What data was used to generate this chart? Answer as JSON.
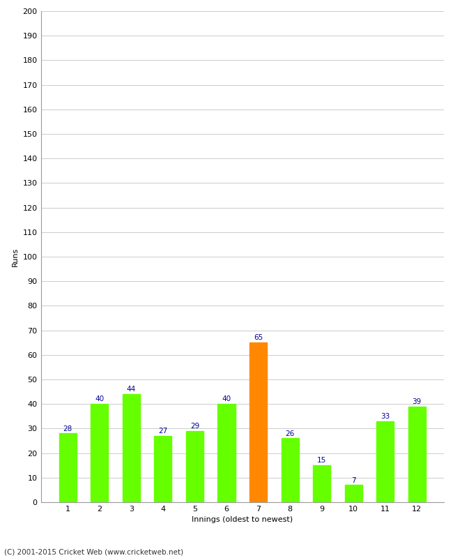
{
  "innings": [
    1,
    2,
    3,
    4,
    5,
    6,
    7,
    8,
    9,
    10,
    11,
    12
  ],
  "values": [
    28,
    40,
    44,
    27,
    29,
    40,
    65,
    26,
    15,
    7,
    33,
    39
  ],
  "bar_colors": [
    "#66ff00",
    "#66ff00",
    "#66ff00",
    "#66ff00",
    "#66ff00",
    "#66ff00",
    "#ff8800",
    "#66ff00",
    "#66ff00",
    "#66ff00",
    "#66ff00",
    "#66ff00"
  ],
  "xlabel": "Innings (oldest to newest)",
  "ylabel": "Runs",
  "ylim": [
    0,
    200
  ],
  "ytick_step": 10,
  "label_color": "#000099",
  "label_fontsize": 7.5,
  "axis_label_fontsize": 8,
  "tick_fontsize": 8,
  "footer": "(C) 2001-2015 Cricket Web (www.cricketweb.net)",
  "background_color": "#ffffff",
  "plot_bg_color": "#ffffff",
  "grid_color": "#cccccc",
  "bar_width": 0.55
}
